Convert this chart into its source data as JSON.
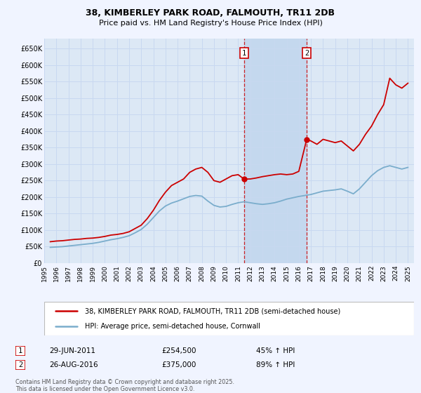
{
  "title": "38, KIMBERLEY PARK ROAD, FALMOUTH, TR11 2DB",
  "subtitle": "Price paid vs. HM Land Registry's House Price Index (HPI)",
  "bg_color": "#f0f4ff",
  "plot_bg_color": "#dce8f5",
  "grid_color": "#c8d8f0",
  "red_color": "#cc0000",
  "blue_color": "#7aadcc",
  "shaded_region_color": "#c4d8ee",
  "event1_x": 2011.49,
  "event2_x": 2016.65,
  "event1_date": "29-JUN-2011",
  "event1_price": "£254,500",
  "event1_hpi": "45% ↑ HPI",
  "event2_date": "26-AUG-2016",
  "event2_price": "£375,000",
  "event2_hpi": "89% ↑ HPI",
  "legend_line1": "38, KIMBERLEY PARK ROAD, FALMOUTH, TR11 2DB (semi-detached house)",
  "legend_line2": "HPI: Average price, semi-detached house, Cornwall",
  "footer": "Contains HM Land Registry data © Crown copyright and database right 2025.\nThis data is licensed under the Open Government Licence v3.0.",
  "ylim": [
    0,
    680000
  ],
  "xlim": [
    1995,
    2025.5
  ],
  "yticks": [
    0,
    50000,
    100000,
    150000,
    200000,
    250000,
    300000,
    350000,
    400000,
    450000,
    500000,
    550000,
    600000,
    650000
  ],
  "ytick_labels": [
    "£0",
    "£50K",
    "£100K",
    "£150K",
    "£200K",
    "£250K",
    "£300K",
    "£350K",
    "£400K",
    "£450K",
    "£500K",
    "£550K",
    "£600K",
    "£650K"
  ],
  "xticks": [
    1995,
    1996,
    1997,
    1998,
    1999,
    2000,
    2001,
    2002,
    2003,
    2004,
    2005,
    2006,
    2007,
    2008,
    2009,
    2010,
    2011,
    2012,
    2013,
    2014,
    2015,
    2016,
    2017,
    2018,
    2019,
    2020,
    2021,
    2022,
    2023,
    2024,
    2025
  ],
  "red_x": [
    1995.5,
    1996.0,
    1996.5,
    1997.0,
    1997.5,
    1998.0,
    1998.5,
    1999.0,
    1999.5,
    2000.0,
    2000.5,
    2001.0,
    2001.5,
    2002.0,
    2002.5,
    2003.0,
    2003.5,
    2004.0,
    2004.5,
    2005.0,
    2005.5,
    2006.0,
    2006.5,
    2007.0,
    2007.5,
    2008.0,
    2008.5,
    2009.0,
    2009.5,
    2010.0,
    2010.5,
    2011.0,
    2011.49,
    2012.0,
    2012.5,
    2013.0,
    2013.5,
    2014.0,
    2014.5,
    2015.0,
    2015.5,
    2016.0,
    2016.65,
    2017.0,
    2017.5,
    2018.0,
    2018.5,
    2019.0,
    2019.5,
    2020.0,
    2020.5,
    2021.0,
    2021.5,
    2022.0,
    2022.5,
    2023.0,
    2023.5,
    2024.0,
    2024.5,
    2025.0
  ],
  "red_y": [
    65000,
    67000,
    68000,
    70000,
    72000,
    73000,
    75000,
    76000,
    78000,
    81000,
    85000,
    87000,
    90000,
    95000,
    105000,
    115000,
    135000,
    160000,
    190000,
    215000,
    235000,
    245000,
    255000,
    275000,
    285000,
    290000,
    275000,
    250000,
    245000,
    255000,
    265000,
    268000,
    254500,
    255000,
    258000,
    262000,
    265000,
    268000,
    270000,
    268000,
    270000,
    278000,
    375000,
    370000,
    360000,
    375000,
    370000,
    365000,
    370000,
    355000,
    340000,
    360000,
    390000,
    415000,
    450000,
    480000,
    560000,
    540000,
    530000,
    545000
  ],
  "blue_x": [
    1995.5,
    1996.0,
    1996.5,
    1997.0,
    1997.5,
    1998.0,
    1998.5,
    1999.0,
    1999.5,
    2000.0,
    2000.5,
    2001.0,
    2001.5,
    2002.0,
    2002.5,
    2003.0,
    2003.5,
    2004.0,
    2004.5,
    2005.0,
    2005.5,
    2006.0,
    2006.5,
    2007.0,
    2007.5,
    2008.0,
    2008.5,
    2009.0,
    2009.5,
    2010.0,
    2010.5,
    2011.0,
    2011.5,
    2012.0,
    2012.5,
    2013.0,
    2013.5,
    2014.0,
    2014.5,
    2015.0,
    2015.5,
    2016.0,
    2016.5,
    2017.0,
    2017.5,
    2018.0,
    2018.5,
    2019.0,
    2019.5,
    2020.0,
    2020.5,
    2021.0,
    2021.5,
    2022.0,
    2022.5,
    2023.0,
    2023.5,
    2024.0,
    2024.5,
    2025.0
  ],
  "blue_y": [
    48000,
    49000,
    50000,
    52000,
    54000,
    56000,
    58000,
    60000,
    63000,
    67000,
    71000,
    74000,
    78000,
    83000,
    92000,
    102000,
    118000,
    138000,
    158000,
    173000,
    182000,
    188000,
    195000,
    202000,
    205000,
    203000,
    188000,
    175000,
    170000,
    172000,
    178000,
    183000,
    186000,
    183000,
    180000,
    178000,
    180000,
    183000,
    188000,
    194000,
    198000,
    202000,
    205000,
    208000,
    213000,
    218000,
    220000,
    222000,
    225000,
    218000,
    210000,
    225000,
    245000,
    265000,
    280000,
    290000,
    295000,
    290000,
    285000,
    290000
  ]
}
